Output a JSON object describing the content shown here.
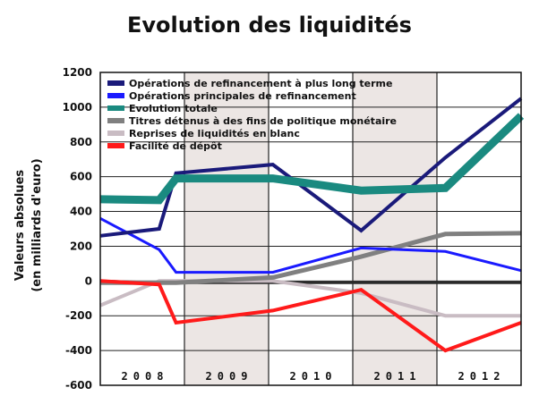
{
  "chart_data": {
    "type": "line",
    "title": "Evolution des liquidités",
    "ylabel_lines": [
      "Valeurs absolues",
      "(en milliards d'euro)"
    ],
    "xlabel": "",
    "ylim": [
      -600,
      1200
    ],
    "yticks": [
      1200,
      1000,
      800,
      600,
      400,
      200,
      0,
      -200,
      -400,
      -600
    ],
    "years": [
      "2008",
      "2009",
      "2010",
      "2011",
      "2012"
    ],
    "shaded_years": [
      "2009",
      "2011"
    ],
    "x_range": [
      0,
      10
    ],
    "grid": true,
    "legend_position": "top-left",
    "series": [
      {
        "name": "Opérations de refinancement à plus long terme",
        "color": "#1a1a7a",
        "width": 4,
        "x": [
          0,
          1.4,
          1.8,
          4.1,
          6.2,
          8.2,
          10
        ],
        "y": [
          260,
          300,
          620,
          670,
          290,
          710,
          1050
        ]
      },
      {
        "name": "Opérations principales de refinancement",
        "color": "#1a1aff",
        "width": 3,
        "x": [
          0,
          1.4,
          1.8,
          4.1,
          6.2,
          8.2,
          10
        ],
        "y": [
          360,
          180,
          50,
          50,
          190,
          170,
          60
        ]
      },
      {
        "name": "Evolution totale",
        "color": "#1a8a80",
        "width": 9,
        "x": [
          0,
          1.4,
          1.8,
          4.1,
          6.2,
          8.2,
          10
        ],
        "y": [
          470,
          465,
          590,
          590,
          520,
          535,
          950
        ]
      },
      {
        "name": "Titres détenus à des fins de politique monétaire",
        "color": "#808080",
        "width": 5,
        "x": [
          0,
          1.4,
          1.8,
          4.1,
          6.2,
          8.2,
          10
        ],
        "y": [
          -10,
          -10,
          -10,
          20,
          140,
          270,
          275
        ]
      },
      {
        "name": "Reprises de liquidités en blanc",
        "color": "#c9bcc3",
        "width": 4,
        "x": [
          0,
          1.4,
          1.8,
          4.1,
          6.2,
          8.2,
          10
        ],
        "y": [
          -140,
          0,
          0,
          0,
          -70,
          -200,
          -200
        ]
      },
      {
        "name": "Facilité de dépôt",
        "color": "#ff1a1a",
        "width": 4,
        "x": [
          0,
          1.4,
          1.8,
          4.1,
          6.2,
          8.2,
          10
        ],
        "y": [
          0,
          -20,
          -240,
          -170,
          -50,
          -400,
          -240
        ]
      }
    ],
    "zero_line": {
      "color": "#2a2a2a",
      "width": 3,
      "x": [
        0,
        1.4,
        1.8,
        4.1,
        6.2,
        8.2,
        10
      ],
      "y": [
        0,
        -10,
        -10,
        -10,
        -10,
        -10,
        -10
      ]
    }
  }
}
